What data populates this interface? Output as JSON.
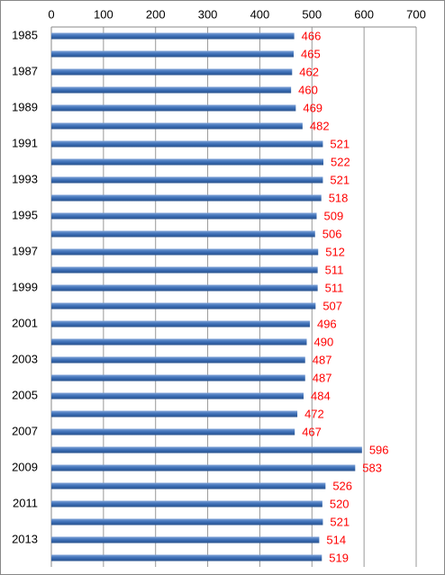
{
  "chart_data": {
    "type": "barh",
    "categories": [
      "1985",
      null,
      "1987",
      null,
      "1989",
      null,
      "1991",
      null,
      "1993",
      null,
      "1995",
      null,
      "1997",
      null,
      "1999",
      null,
      "2001",
      null,
      "2003",
      null,
      "2005",
      null,
      "2007",
      null,
      "2009",
      null,
      "2011",
      null,
      "2013",
      null
    ],
    "values": [
      466,
      465,
      462,
      460,
      469,
      482,
      521,
      522,
      521,
      518,
      509,
      506,
      512,
      511,
      511,
      507,
      496,
      490,
      487,
      487,
      484,
      472,
      467,
      596,
      583,
      526,
      520,
      521,
      514,
      519
    ],
    "color": "#3a6db5",
    "label_color": "#ff0000",
    "xlim": [
      0,
      700
    ],
    "xticks": [
      0,
      100,
      200,
      300,
      400,
      500,
      600,
      700
    ],
    "grid": true
  }
}
